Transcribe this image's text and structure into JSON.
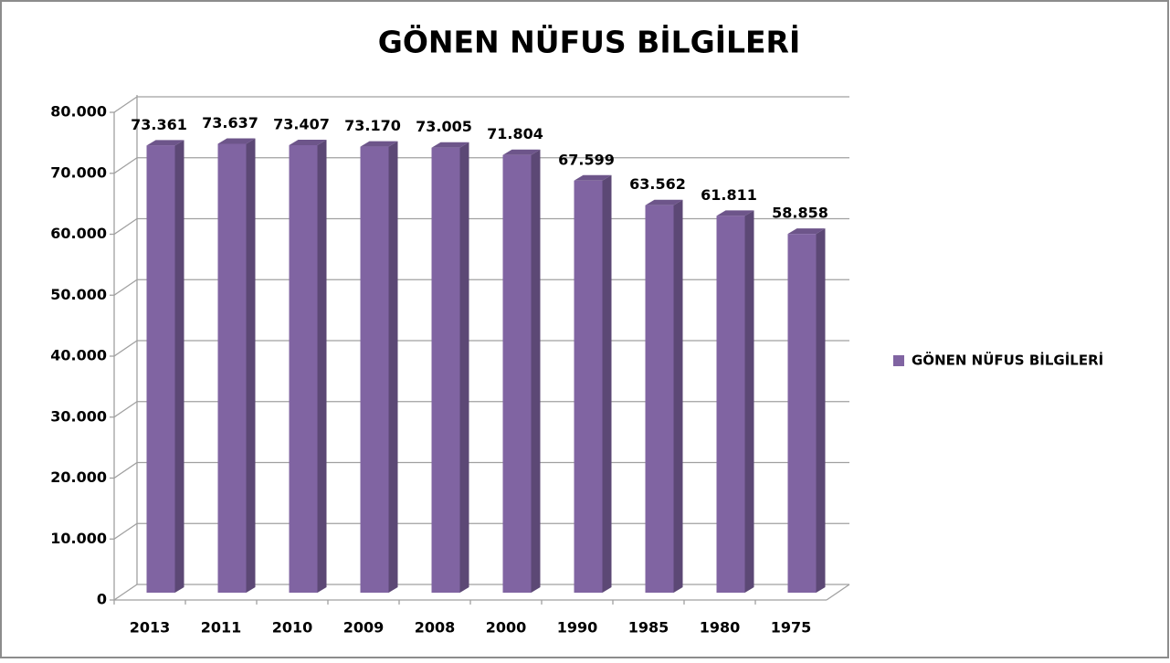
{
  "chart_data": {
    "type": "bar3d",
    "title": "GÖNEN NÜFUS BİLGİLERİ",
    "categories": [
      "2013",
      "2011",
      "2010",
      "2009",
      "2008",
      "2000",
      "1990",
      "1985",
      "1980",
      "1975"
    ],
    "series": [
      {
        "name": "GÖNEN NÜFUS BİLGİLERİ",
        "color": "#8064a2",
        "values": [
          73361,
          73637,
          73407,
          73170,
          73005,
          71804,
          67599,
          63562,
          61811,
          58858
        ],
        "value_labels": [
          "73.361",
          "73.637",
          "73.407",
          "73.170",
          "73.005",
          "71.804",
          "67.599",
          "63.562",
          "61.811",
          "58.858"
        ]
      }
    ],
    "ylim": [
      0,
      80000
    ],
    "yticks": [
      0,
      {
        "value": 10000,
        "label": "10.000"
      },
      {
        "value": 20000,
        "label": "20.000"
      },
      {
        "value": 30000,
        "label": "30.000"
      },
      {
        "value": 40000,
        "label": "40.000"
      },
      {
        "value": 50000,
        "label": "50.000"
      },
      {
        "value": 60000,
        "label": "60.000"
      },
      {
        "value": 70000,
        "label": "70.000"
      },
      {
        "value": 80000,
        "label": "80.000"
      }
    ],
    "grid": true,
    "legend": "right"
  }
}
